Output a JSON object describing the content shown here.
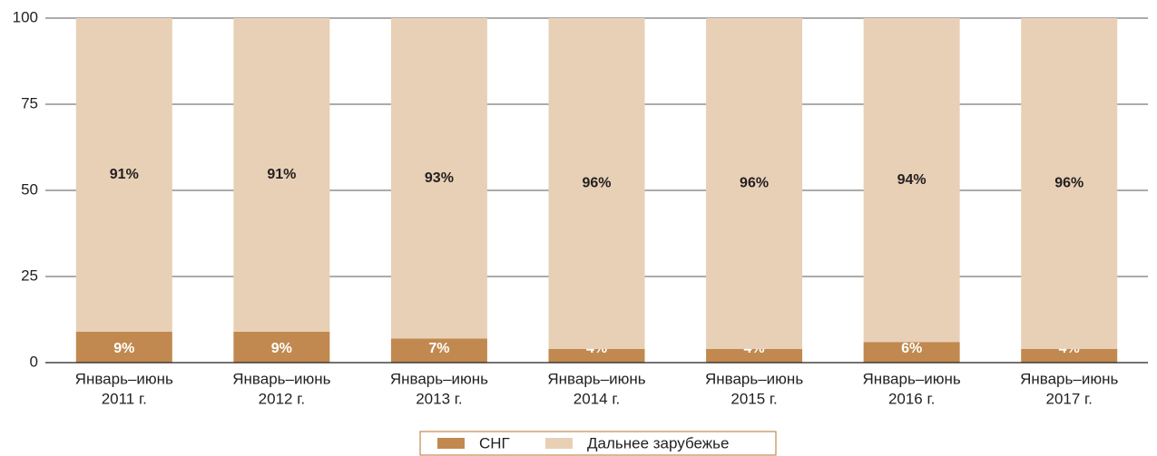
{
  "chart_data": {
    "type": "stacked_bar",
    "categories": [
      [
        "Январь–июнь",
        "2011 г."
      ],
      [
        "Январь–июнь",
        "2012 г."
      ],
      [
        "Январь–июнь",
        "2013 г."
      ],
      [
        "Январь–июнь",
        "2014 г."
      ],
      [
        "Январь–июнь",
        "2015 г."
      ],
      [
        "Январь–июнь",
        "2016 г."
      ],
      [
        "Январь–июнь",
        "2017 г."
      ]
    ],
    "series": [
      {
        "name": "СНГ",
        "color": "#c1894f",
        "label_color": "#ffffff",
        "values": [
          9,
          9,
          7,
          4,
          4,
          6,
          4
        ],
        "value_labels": [
          "9%",
          "9%",
          "7%",
          "4%",
          "4%",
          "6%",
          "4%"
        ]
      },
      {
        "name": "Дальнее зарубежье",
        "color": "#e8d0b6",
        "label_color": "#231f20",
        "values": [
          91,
          91,
          93,
          96,
          96,
          94,
          96
        ],
        "value_labels": [
          "91%",
          "91%",
          "93%",
          "96%",
          "96%",
          "94%",
          "96%"
        ]
      }
    ],
    "ylim": [
      0,
      100
    ],
    "yticks": [
      0,
      25,
      50,
      75,
      100
    ],
    "grid": true,
    "legend": "bottom"
  }
}
